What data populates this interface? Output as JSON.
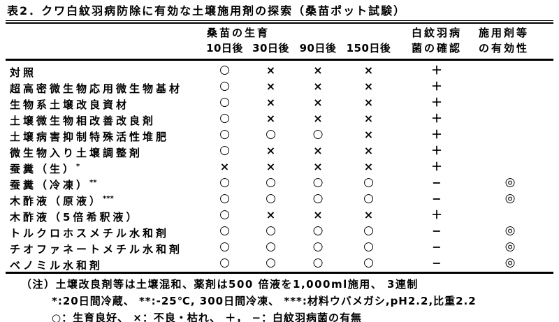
{
  "title": "表2．クワ白紋羽病防除に有効な土壌施用剤の探索（桑苗ポット試験）",
  "header": {
    "growth_group": "桑苗の生育",
    "dates": [
      "10日後",
      "30日後",
      "90日後",
      "150日後"
    ],
    "fungus_line1": "白紋羽病",
    "fungus_line2": "菌の確認",
    "efficacy_line1": "施用剤等",
    "efficacy_line2": "の有効性"
  },
  "rows": [
    {
      "label": "対照",
      "sup": "",
      "cells": [
        "○",
        "×",
        "×",
        "×",
        "＋",
        ""
      ]
    },
    {
      "label": "超高密微生物応用微生物基材",
      "sup": "",
      "cells": [
        "○",
        "×",
        "×",
        "×",
        "＋",
        ""
      ]
    },
    {
      "label": "生物系土壌改良資材",
      "sup": "",
      "cells": [
        "○",
        "×",
        "×",
        "×",
        "＋",
        ""
      ]
    },
    {
      "label": "土壌微生物相改善改良剤",
      "sup": "",
      "cells": [
        "○",
        "×",
        "×",
        "×",
        "＋",
        ""
      ]
    },
    {
      "label": "土壌病害抑制特殊活性堆肥",
      "sup": "",
      "cells": [
        "○",
        "○",
        "○",
        "×",
        "＋",
        ""
      ]
    },
    {
      "label": "微生物入り土壌調整剤",
      "sup": "",
      "cells": [
        "○",
        "×",
        "×",
        "×",
        "＋",
        ""
      ]
    },
    {
      "label": "蚕糞（生）",
      "sup": "*",
      "cells": [
        "×",
        "×",
        "×",
        "×",
        "＋",
        ""
      ]
    },
    {
      "label": "蚕糞（冷凍）",
      "sup": "**",
      "cells": [
        "○",
        "○",
        "○",
        "○",
        "−",
        "◎"
      ]
    },
    {
      "label": "木酢液（原液）",
      "sup": "***",
      "cells": [
        "○",
        "○",
        "○",
        "○",
        "−",
        "◎"
      ]
    },
    {
      "label": "木酢液（5倍希釈液）",
      "sup": "",
      "cells": [
        "○",
        "×",
        "×",
        "×",
        "＋",
        ""
      ]
    },
    {
      "label": "トルクロホスメチル水和剤",
      "sup": "",
      "cells": [
        "○",
        "○",
        "○",
        "○",
        "−",
        "◎"
      ]
    },
    {
      "label": "チオファネートメチル水和剤",
      "sup": "",
      "cells": [
        "○",
        "○",
        "○",
        "○",
        "−",
        "◎"
      ]
    },
    {
      "label": "ベノミル水和剤",
      "sup": "",
      "cells": [
        "○",
        "○",
        "○",
        "○",
        "−",
        "◎"
      ]
    }
  ],
  "notes": {
    "line1": "（注）土壌改良剤等は土壌混和、薬剤は500 倍液を1,000ml施用、 3連制",
    "line2": "*:20日間冷蔵、 **:-25℃, 300日間冷凍、 ***:材料ウバメガシ,pH2.2,比重2.2",
    "line3": "○：生育良好、 ×：不良・枯れ、 ＋， −：白紋羽病菌の有無"
  }
}
